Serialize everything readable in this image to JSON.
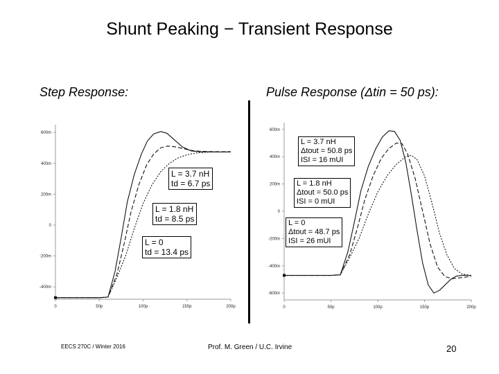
{
  "slide": {
    "title": "Shunt Peaking − Transient Response",
    "footer_left": "EECS 270C / Winter 2016",
    "footer_center": "Prof. M. Green / U.C. Irvine",
    "page_number": "20"
  },
  "chart_data": [
    {
      "type": "line",
      "title": "Step Response:",
      "xlim": [
        0,
        200
      ],
      "ylim": [
        -480,
        650
      ],
      "x_ticks": [
        "0",
        "50p",
        "100p",
        "150p",
        "200p"
      ],
      "x_tick_values": [
        0,
        50,
        100,
        150,
        200
      ],
      "y_ticks": [
        "600m",
        "400m",
        "200m",
        "0",
        "-200m",
        "-400m"
      ],
      "y_tick_values": [
        600,
        400,
        200,
        0,
        -200,
        -400
      ],
      "series": [
        {
          "x": [
            0,
            50,
            60,
            68,
            75,
            82,
            90,
            98,
            105,
            112,
            120,
            127,
            135,
            145,
            155,
            165,
            175,
            185,
            200
          ],
          "y": [
            -470,
            -470,
            -466,
            -300,
            -80,
            150,
            330,
            460,
            545,
            590,
            605,
            595,
            555,
            505,
            480,
            474,
            474,
            473,
            473
          ]
        },
        {
          "x": [
            0,
            50,
            60,
            70,
            78,
            86,
            95,
            104,
            112,
            120,
            128,
            136,
            145,
            155,
            165,
            175,
            185,
            200
          ],
          "y": [
            -470,
            -470,
            -466,
            -320,
            -130,
            80,
            260,
            390,
            460,
            500,
            512,
            507,
            496,
            483,
            478,
            476,
            475,
            475
          ]
        },
        {
          "x": [
            0,
            50,
            60,
            70,
            80,
            90,
            100,
            110,
            120,
            130,
            140,
            150,
            160,
            170,
            180,
            200
          ],
          "y": [
            -470,
            -470,
            -466,
            -340,
            -200,
            -20,
            140,
            260,
            345,
            400,
            435,
            455,
            466,
            471,
            473,
            474
          ]
        }
      ],
      "annotations": [
        {
          "lines": [
            "L = 3.7 nH",
            "td = 6.7 ps"
          ]
        },
        {
          "lines": [
            "L = 1.8 nH",
            "td = 8.5 ps"
          ]
        },
        {
          "lines": [
            "L = 0",
            "td = 13.4 ps"
          ]
        }
      ]
    },
    {
      "type": "line",
      "title": "Pulse Response (Δtin = 50 ps):",
      "xlim": [
        0,
        200
      ],
      "ylim": [
        -650,
        650
      ],
      "x_ticks": [
        "0",
        "50p",
        "100p",
        "150p",
        "200p"
      ],
      "x_tick_values": [
        0,
        50,
        100,
        150,
        200
      ],
      "y_ticks": [
        "600m",
        "400m",
        "200m",
        "0",
        "-200m",
        "-400m",
        "-600m"
      ],
      "y_tick_values": [
        600,
        400,
        200,
        0,
        -200,
        -400,
        -600
      ],
      "series": [
        {
          "x": [
            0,
            50,
            60,
            68,
            75,
            82,
            90,
            98,
            105,
            112,
            118,
            124,
            130,
            136,
            142,
            148,
            154,
            160,
            166,
            172,
            178,
            184,
            190,
            200
          ],
          "y": [
            -470,
            -470,
            -466,
            -300,
            -80,
            150,
            330,
            460,
            545,
            590,
            585,
            520,
            360,
            120,
            -140,
            -380,
            -540,
            -600,
            -580,
            -540,
            -500,
            -476,
            -470,
            -470
          ]
        },
        {
          "x": [
            0,
            50,
            60,
            70,
            78,
            86,
            95,
            104,
            112,
            120,
            126,
            132,
            140,
            148,
            156,
            164,
            172,
            180,
            188,
            200
          ],
          "y": [
            -470,
            -470,
            -466,
            -320,
            -130,
            80,
            260,
            390,
            460,
            500,
            495,
            420,
            240,
            0,
            -240,
            -410,
            -480,
            -494,
            -488,
            -478
          ]
        },
        {
          "x": [
            0,
            50,
            60,
            70,
            80,
            90,
            100,
            110,
            120,
            130,
            136,
            142,
            150,
            158,
            166,
            174,
            182,
            190,
            200
          ],
          "y": [
            -470,
            -470,
            -466,
            -340,
            -200,
            -20,
            140,
            260,
            345,
            400,
            410,
            380,
            260,
            60,
            -160,
            -320,
            -420,
            -460,
            -472
          ]
        }
      ],
      "annotations": [
        {
          "lines": [
            "L = 3.7 nH",
            "Δtout = 50.8 ps",
            "ISI = 16 mUI"
          ]
        },
        {
          "lines": [
            "L = 1.8 nH",
            "Δtout = 50.0 ps",
            "ISI = 0 mUI"
          ]
        },
        {
          "lines": [
            "L = 0",
            "Δtout = 48.7 ps",
            "ISI = 26 mUI"
          ]
        }
      ]
    }
  ]
}
